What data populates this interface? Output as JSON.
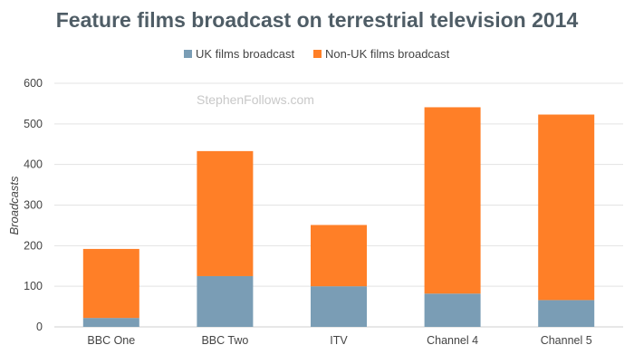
{
  "chart_data": {
    "type": "bar",
    "stacked": true,
    "title": "Feature films broadcast on terrestrial television 2014",
    "watermark": "StephenFollows.com",
    "ylabel": "Broadcasts",
    "xlabel": "",
    "ylim": [
      0,
      600
    ],
    "yticks": [
      0,
      100,
      200,
      300,
      400,
      500,
      600
    ],
    "categories": [
      "BBC One",
      "BBC Two",
      "ITV",
      "Channel 4",
      "Channel 5"
    ],
    "legend_position": "top",
    "grid": true,
    "series": [
      {
        "name": "UK films broadcast",
        "color": "#7a9db5",
        "values": [
          22,
          125,
          100,
          82,
          66
        ]
      },
      {
        "name": "Non-UK films broadcast",
        "color": "#ff7f27",
        "values": [
          170,
          308,
          151,
          459,
          457
        ]
      }
    ]
  }
}
